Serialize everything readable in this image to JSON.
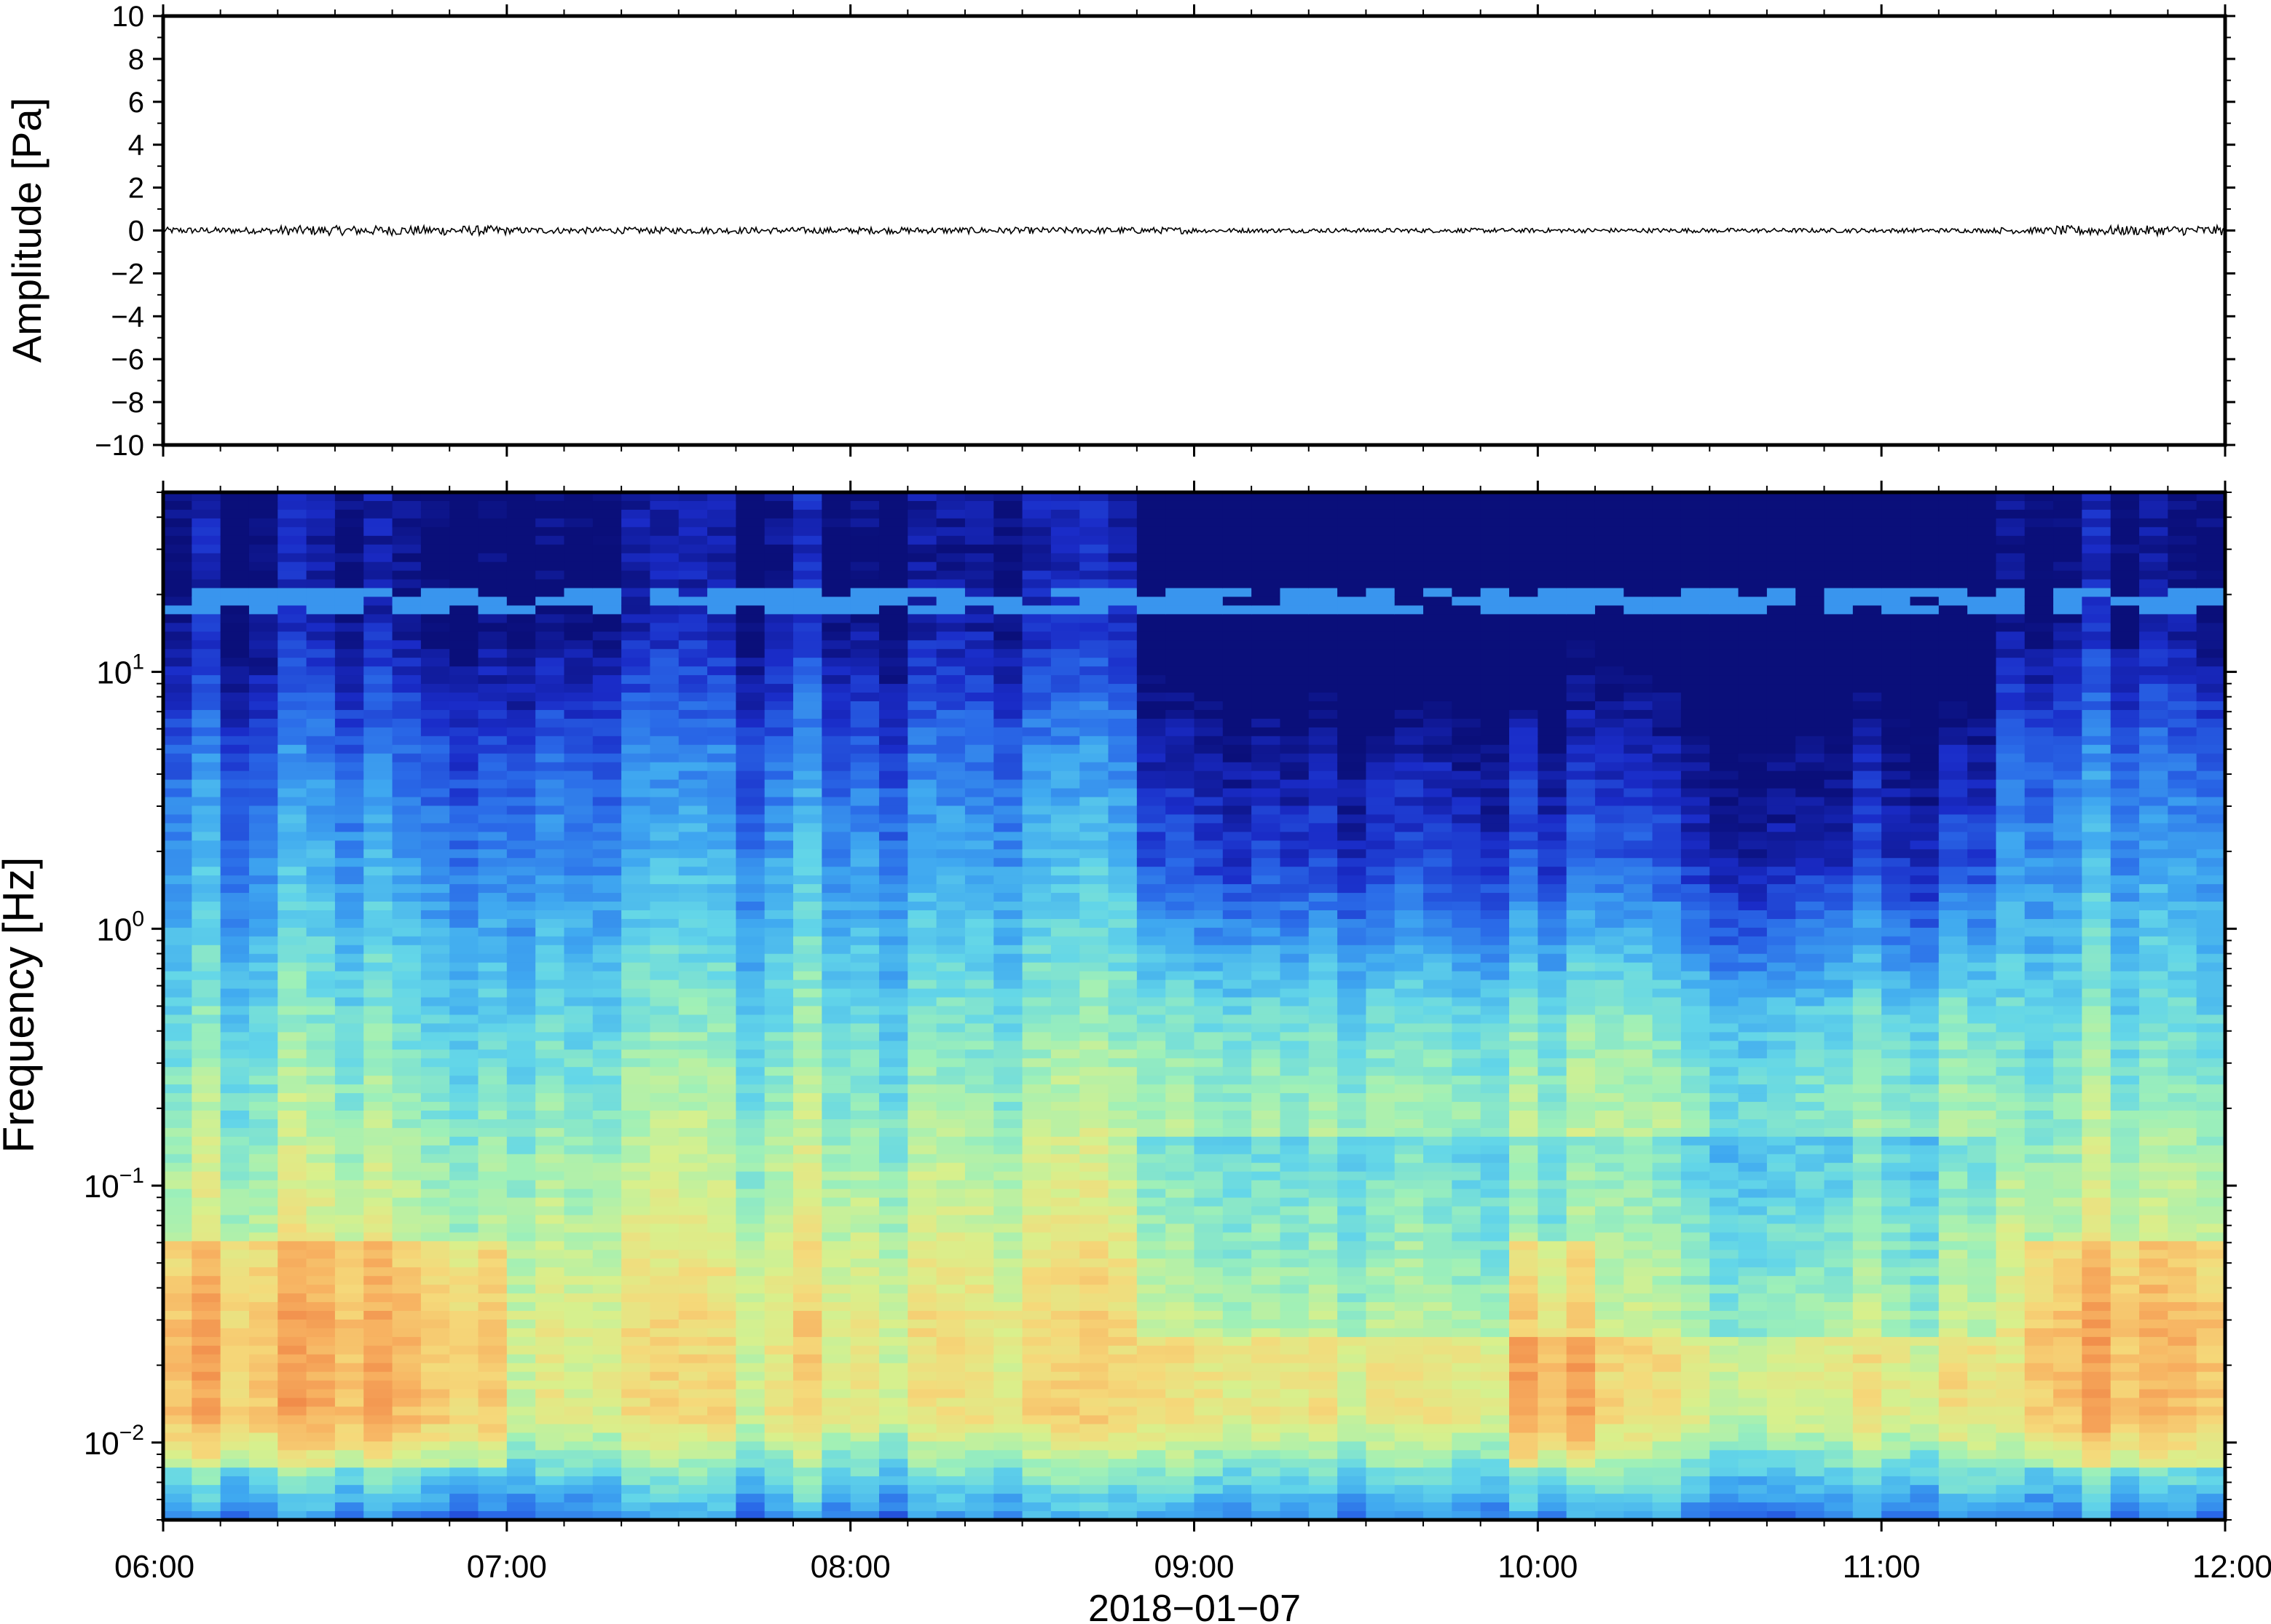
{
  "chart_data": [
    {
      "type": "line",
      "ylabel": "Amplitude [Pa]",
      "ylim": [
        -10,
        10
      ],
      "y_ticks": [
        10,
        8,
        6,
        4,
        2,
        0,
        -2,
        -4,
        -6,
        -8,
        -10
      ],
      "y_tick_labels": [
        "10",
        "8",
        "6",
        "4",
        "2",
        "0",
        "−2",
        "−4",
        "−6",
        "−8",
        "−10"
      ],
      "xlim": [
        "06:00",
        "12:00"
      ],
      "trace": {
        "mean": 0,
        "noise_amplitude": 0.15,
        "color": "#000000"
      }
    },
    {
      "type": "heatmap",
      "ylabel": "Frequency [Hz]",
      "y_scale": "log",
      "ylim": [
        0.005,
        50
      ],
      "y_ticks": [
        0.01,
        0.1,
        1,
        10
      ],
      "y_tick_labels": [
        {
          "base": "10",
          "exp": "−2"
        },
        {
          "base": "10",
          "exp": "−1"
        },
        {
          "base": "10",
          "exp": "0"
        },
        {
          "base": "10",
          "exp": "1"
        }
      ],
      "x_tick_labels": [
        "06:00",
        "07:00",
        "08:00",
        "09:00",
        "10:00",
        "11:00",
        "12:00"
      ],
      "xlabel": "2018−01−07",
      "colormap": [
        "#0a0f7a",
        "#1a2cc8",
        "#2a6ae8",
        "#3fa8f0",
        "#63d6e8",
        "#9ef0b8",
        "#d8f08c",
        "#f5d97a",
        "#f7b060",
        "#f08848"
      ],
      "quiet_period": [
        "08:52",
        "11:18"
      ],
      "notes": "power spectral density: high power at low frequencies, decaying toward high frequencies"
    }
  ]
}
